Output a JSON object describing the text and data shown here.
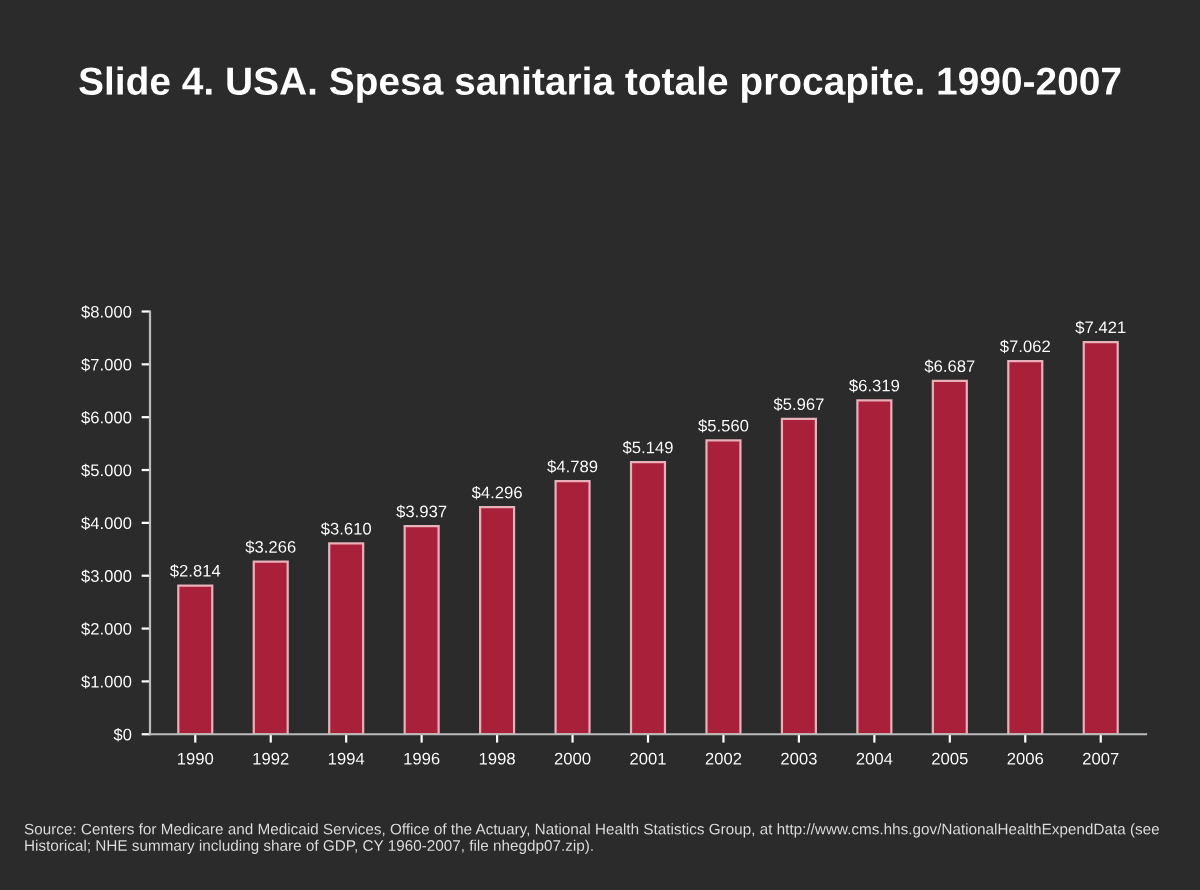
{
  "chart_data": {
    "type": "bar",
    "title": "Slide 4. USA. Spesa sanitaria totale procapite. 1990-2007",
    "categories": [
      "1990",
      "1992",
      "1994",
      "1996",
      "1998",
      "2000",
      "2001",
      "2002",
      "2003",
      "2004",
      "2005",
      "2006",
      "2007"
    ],
    "values": [
      2814,
      3266,
      3610,
      3937,
      4296,
      4789,
      5149,
      5560,
      5967,
      6319,
      6687,
      7062,
      7421
    ],
    "value_labels": [
      "$2.814",
      "$3.266",
      "$3.610",
      "$3.937",
      "$4.296",
      "$4.789",
      "$5.149",
      "$5.560",
      "$5.967",
      "$6.319",
      "$6.687",
      "$7.062",
      "$7.421"
    ],
    "color": "#a8203a",
    "ylim": [
      0,
      8000
    ],
    "yticks": [
      {
        "value": 0,
        "label": "$0"
      },
      {
        "value": 1000,
        "label": "$1.000"
      },
      {
        "value": 2000,
        "label": "$2.000"
      },
      {
        "value": 3000,
        "label": "$3.000"
      },
      {
        "value": 4000,
        "label": "$4.000"
      },
      {
        "value": 5000,
        "label": "$5.000"
      },
      {
        "value": 6000,
        "label": "$6.000"
      },
      {
        "value": 7000,
        "label": "$7.000"
      },
      {
        "value": 8000,
        "label": "$8.000"
      }
    ],
    "grid": false,
    "annotations": [
      "Source: Centers for Medicare and Medicaid Services, Office of the Actuary, National Health Statistics Group, at http://www.cms.hhs.gov/NationalHealthExpendData (see Historical; NHE summary including share of GDP, CY 1960-2007, file nhegdp07.zip)."
    ]
  }
}
